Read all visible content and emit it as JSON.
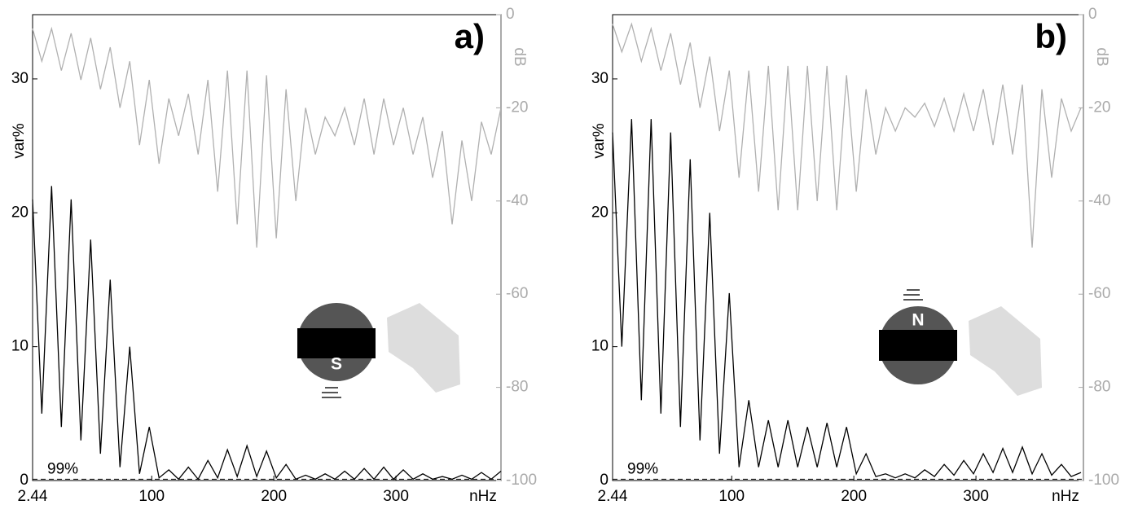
{
  "chart_data": [
    {
      "type": "line",
      "panel_label": "a)",
      "ylabel": "var%",
      "y2label": "dB",
      "xlabel": "nHz",
      "threshold_label": "99%",
      "threshold": 0.1,
      "icon_label": "S",
      "xlim": [
        2.44,
        386
      ],
      "xticks": [
        2.44,
        100,
        200,
        300
      ],
      "ylim": [
        0,
        34.8
      ],
      "yticks": [
        0,
        10,
        20,
        30
      ],
      "y2lim": [
        -100,
        0
      ],
      "y2ticks": [
        0,
        -20,
        -40,
        -60,
        -80,
        -100
      ],
      "x": [
        2.44,
        10,
        18,
        26,
        34,
        42,
        50,
        58,
        66,
        74,
        82,
        90,
        98,
        106,
        114,
        122,
        130,
        138,
        146,
        154,
        162,
        170,
        178,
        186,
        194,
        202,
        210,
        218,
        226,
        234,
        242,
        250,
        258,
        266,
        274,
        282,
        290,
        298,
        306,
        314,
        322,
        330,
        338,
        346,
        354,
        362,
        370,
        378,
        386
      ],
      "series": [
        {
          "color": "#b0b0b0",
          "axis": "y2",
          "values": [
            -3,
            -10,
            -3,
            -12,
            -4,
            -14,
            -5,
            -16,
            -7,
            -20,
            -10,
            -28,
            -14,
            -32,
            -18,
            -26,
            -17,
            -30,
            -14,
            -38,
            -12,
            -45,
            -12,
            -50,
            -13,
            -48,
            -16,
            -40,
            -20,
            -30,
            -22,
            -26,
            -20,
            -28,
            -18,
            -30,
            -18,
            -28,
            -20,
            -30,
            -22,
            -35,
            -25,
            -45,
            -27,
            -40,
            -23,
            -30,
            -20
          ]
        },
        {
          "color": "#000000",
          "values": [
            21,
            5,
            22,
            4,
            21,
            3,
            18,
            2,
            15,
            1,
            10,
            0.5,
            4,
            0.2,
            0.8,
            0.1,
            1,
            0.1,
            1.5,
            0.2,
            2.3,
            0.3,
            2.6,
            0.3,
            2.2,
            0.2,
            1.2,
            0.1,
            0.4,
            0.1,
            0.5,
            0.1,
            0.7,
            0.1,
            0.9,
            0.1,
            1,
            0.1,
            0.8,
            0.1,
            0.5,
            0.1,
            0.3,
            0.1,
            0.4,
            0.1,
            0.6,
            0.1,
            0.7
          ]
        }
      ]
    },
    {
      "type": "line",
      "panel_label": "b)",
      "ylabel": "var%",
      "y2label": "dB",
      "xlabel": "nHz",
      "threshold_label": "99%",
      "threshold": 0.1,
      "icon_label": "N",
      "xlim": [
        2.44,
        388
      ],
      "xticks": [
        2.44,
        100,
        200,
        300
      ],
      "ylim": [
        0,
        34.8
      ],
      "yticks": [
        0,
        10,
        20,
        30
      ],
      "y2lim": [
        -100,
        0
      ],
      "y2ticks": [
        0,
        -20,
        -40,
        -60,
        -80,
        -100
      ],
      "x": [
        2.44,
        10,
        18,
        26,
        34,
        42,
        50,
        58,
        66,
        74,
        82,
        90,
        98,
        106,
        114,
        122,
        130,
        138,
        146,
        154,
        162,
        170,
        178,
        186,
        194,
        202,
        210,
        218,
        226,
        234,
        242,
        250,
        258,
        266,
        274,
        282,
        290,
        298,
        306,
        314,
        322,
        330,
        338,
        346,
        354,
        362,
        370,
        378,
        386
      ],
      "series": [
        {
          "color": "#b0b0b0",
          "axis": "y2",
          "values": [
            -2,
            -8,
            -2,
            -10,
            -3,
            -12,
            -4,
            -15,
            -6,
            -20,
            -9,
            -25,
            -12,
            -35,
            -12,
            -38,
            -11,
            -42,
            -11,
            -42,
            -11,
            -40,
            -11,
            -42,
            -13,
            -38,
            -16,
            -30,
            -20,
            -25,
            -20,
            -22,
            -19,
            -24,
            -18,
            -25,
            -17,
            -25,
            -16,
            -28,
            -15,
            -30,
            -15,
            -50,
            -16,
            -35,
            -18,
            -25,
            -20
          ]
        },
        {
          "color": "#000000",
          "values": [
            26,
            10,
            27,
            6,
            27,
            5,
            26,
            4,
            24,
            3,
            20,
            2,
            14,
            1,
            6,
            1,
            4.5,
            1,
            4.5,
            1,
            4,
            1,
            4.3,
            1,
            4,
            0.5,
            2,
            0.3,
            0.5,
            0.2,
            0.5,
            0.2,
            0.8,
            0.3,
            1.2,
            0.4,
            1.5,
            0.5,
            2,
            0.6,
            2.4,
            0.6,
            2.5,
            0.5,
            2,
            0.4,
            1.2,
            0.3,
            0.6
          ]
        }
      ]
    }
  ]
}
